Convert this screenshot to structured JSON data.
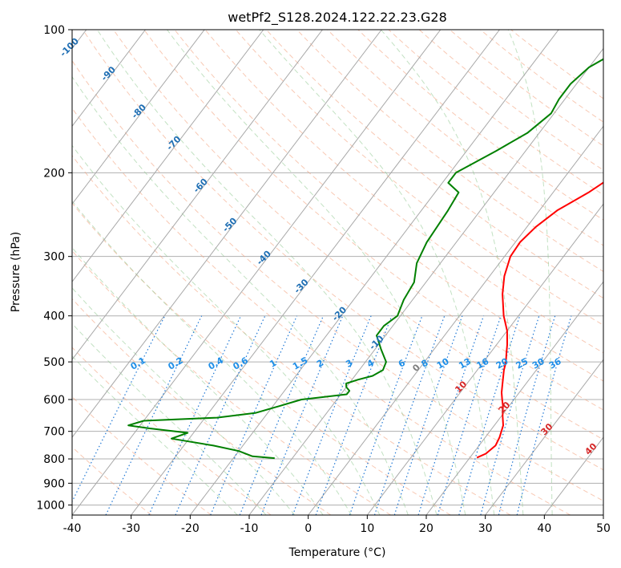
{
  "chart_data": {
    "type": "line",
    "subtype": "skew-T log-p diagram",
    "title": "wetPf2_S128.2024.122.22.23.G28",
    "xlabel": "Temperature (°C)",
    "ylabel": "Pressure (hPa)",
    "xlim": [
      -40,
      50
    ],
    "ylim": [
      1050,
      100
    ],
    "y_scale": "log",
    "grid": true,
    "x_ticks": [
      -40,
      -30,
      -20,
      -10,
      0,
      10,
      20,
      30,
      40,
      50
    ],
    "y_ticks": [
      100,
      200,
      300,
      400,
      500,
      600,
      700,
      800,
      900,
      1000
    ],
    "series": [
      {
        "role": "temperature",
        "color": "#ff0000",
        "points": [
          [
            21.2,
            795
          ],
          [
            22.2,
            780
          ],
          [
            22.8,
            750
          ],
          [
            22.4,
            720
          ],
          [
            21.5,
            680
          ],
          [
            20.2,
            650
          ],
          [
            19,
            620
          ],
          [
            18,
            600
          ],
          [
            17,
            580
          ],
          [
            16.2,
            560
          ],
          [
            14.5,
            520
          ],
          [
            13.8,
            500
          ],
          [
            12.8,
            480
          ],
          [
            11.8,
            460
          ],
          [
            10,
            430
          ],
          [
            7.5,
            400
          ],
          [
            4.5,
            360
          ],
          [
            2.5,
            330
          ],
          [
            1,
            300
          ],
          [
            0.8,
            280
          ],
          [
            1.5,
            260
          ],
          [
            3,
            240
          ],
          [
            6,
            220
          ],
          [
            8.5,
            200
          ],
          [
            9.5,
            180
          ],
          [
            10,
            160
          ],
          [
            11,
            140
          ],
          [
            12.8,
            125
          ],
          [
            13.7,
            115
          ],
          [
            14.3,
            100
          ]
        ]
      },
      {
        "role": "dewpoint",
        "color": "#008000",
        "points": [
          [
            -13,
            797
          ],
          [
            -17,
            790
          ],
          [
            -20,
            770
          ],
          [
            -25,
            750
          ],
          [
            -33,
            725
          ],
          [
            -31,
            705
          ],
          [
            -38,
            690
          ],
          [
            -42,
            680
          ],
          [
            -40,
            665
          ],
          [
            -28,
            655
          ],
          [
            -22,
            640
          ],
          [
            -19,
            620
          ],
          [
            -16,
            600
          ],
          [
            -9,
            585
          ],
          [
            -9,
            575
          ],
          [
            -10,
            565
          ],
          [
            -10.5,
            555
          ],
          [
            -9,
            545
          ],
          [
            -7,
            535
          ],
          [
            -6,
            520
          ],
          [
            -6.5,
            500
          ],
          [
            -9,
            470
          ],
          [
            -11.5,
            440
          ],
          [
            -11.5,
            420
          ],
          [
            -10.5,
            400
          ],
          [
            -11.5,
            370
          ],
          [
            -12,
            340
          ],
          [
            -14,
            310
          ],
          [
            -15,
            280
          ],
          [
            -15.5,
            240
          ],
          [
            -16,
            220
          ],
          [
            -19,
            210
          ],
          [
            -19,
            200
          ],
          [
            -15,
            180
          ],
          [
            -12,
            165
          ],
          [
            -10.5,
            150
          ],
          [
            -11,
            140
          ],
          [
            -11,
            130
          ],
          [
            -10,
            120
          ],
          [
            -7,
            110
          ],
          [
            -3,
            100
          ]
        ]
      }
    ],
    "isotherm_labels": [
      "-100",
      "-90",
      "-80",
      "-70",
      "-60",
      "-50",
      "-40",
      "-30",
      "-20",
      "-10",
      "0",
      "10",
      "20",
      "30",
      "40"
    ],
    "mixing_ratio_labels": [
      "0.1",
      "0.2",
      "0.4",
      "0.6",
      "1",
      "1.5",
      "2",
      "3",
      "4",
      "6",
      "8",
      "10",
      "13",
      "16",
      "20",
      "25",
      "30",
      "36"
    ]
  }
}
